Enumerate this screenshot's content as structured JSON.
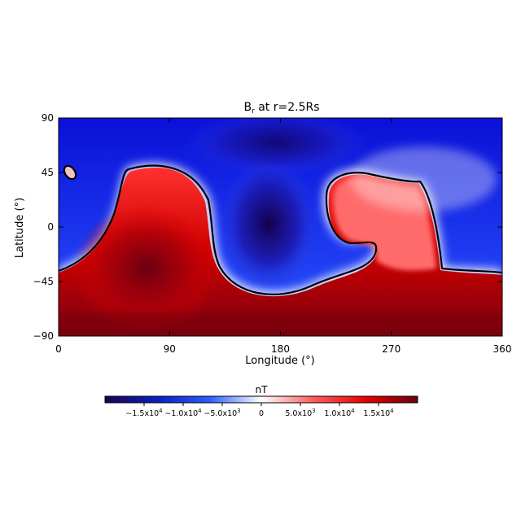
{
  "chart_data": {
    "type": "heatmap",
    "title": "B",
    "title_sub": "r",
    "title_rest": " at r=2.5Rs",
    "xlabel": "Longitude (°)",
    "ylabel": "Latitude (°)",
    "xlim": [
      0,
      360
    ],
    "ylim": [
      -90,
      90
    ],
    "x_ticks": [
      0,
      90,
      180,
      270,
      360
    ],
    "y_ticks": [
      90,
      45,
      0,
      -45,
      -90
    ],
    "x_tick_labels": [
      "0",
      "90",
      "180",
      "270",
      "360"
    ],
    "y_tick_labels": [
      "90",
      "45",
      "0",
      "−45",
      "−90"
    ],
    "colorbar": {
      "label": "nT",
      "range": [
        -20000,
        20000
      ],
      "ticks": [
        -15000,
        -10000,
        -5000,
        0,
        5000,
        10000,
        15000
      ],
      "tick_labels": [
        {
          "mant": "−1.5x10",
          "exp": "4"
        },
        {
          "mant": "−1.0x10",
          "exp": "4"
        },
        {
          "mant": "−5.0x10",
          "exp": "3"
        },
        {
          "mant": "0",
          "exp": ""
        },
        {
          "mant": "5.0x10",
          "exp": "3"
        },
        {
          "mant": "1.0x10",
          "exp": "4"
        },
        {
          "mant": "1.5x10",
          "exp": "4"
        }
      ],
      "colors": [
        "#1a0052",
        "#0b1ec4",
        "#2a5cff",
        "#ffffff",
        "#ff5c5c",
        "#e80000",
        "#6a0010"
      ]
    },
    "neutral_line_color": "#000000",
    "field_samples": [
      {
        "lon": 10,
        "lat": 70,
        "value": -8000
      },
      {
        "lon": 170,
        "lat": 20,
        "value": -17000
      },
      {
        "lon": 340,
        "lat": 10,
        "value": -10000
      },
      {
        "lon": 80,
        "lat": -20,
        "value": 17000
      },
      {
        "lon": 260,
        "lat": 10,
        "value": 9000
      },
      {
        "lon": 180,
        "lat": -80,
        "value": 16000
      }
    ]
  }
}
